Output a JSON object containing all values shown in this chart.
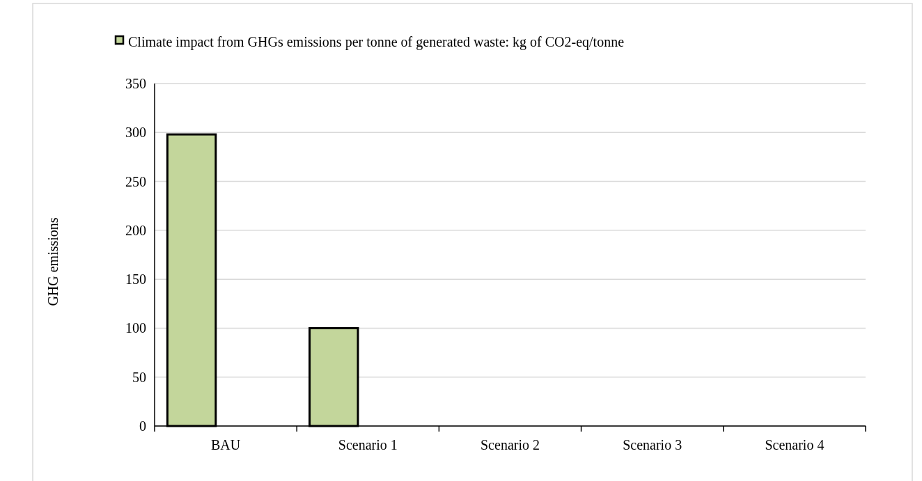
{
  "chart_data": {
    "type": "bar",
    "ylabel": "GHG emissions",
    "categories": [
      "BAU",
      "Scenario 1",
      "Scenario 2",
      "Scenario 3",
      "Scenario 4"
    ],
    "series": [
      {
        "name": "Climate impact from GHGs emissions per tonne of generated waste: kg of CO2-eq/tonne",
        "color": "#c3d69b",
        "values": [
          298,
          100,
          null,
          null,
          null
        ]
      }
    ],
    "ylim": [
      0,
      350
    ],
    "yticks": [
      0,
      50,
      100,
      150,
      200,
      250,
      300,
      350
    ],
    "grid": "y",
    "legend": "top"
  }
}
